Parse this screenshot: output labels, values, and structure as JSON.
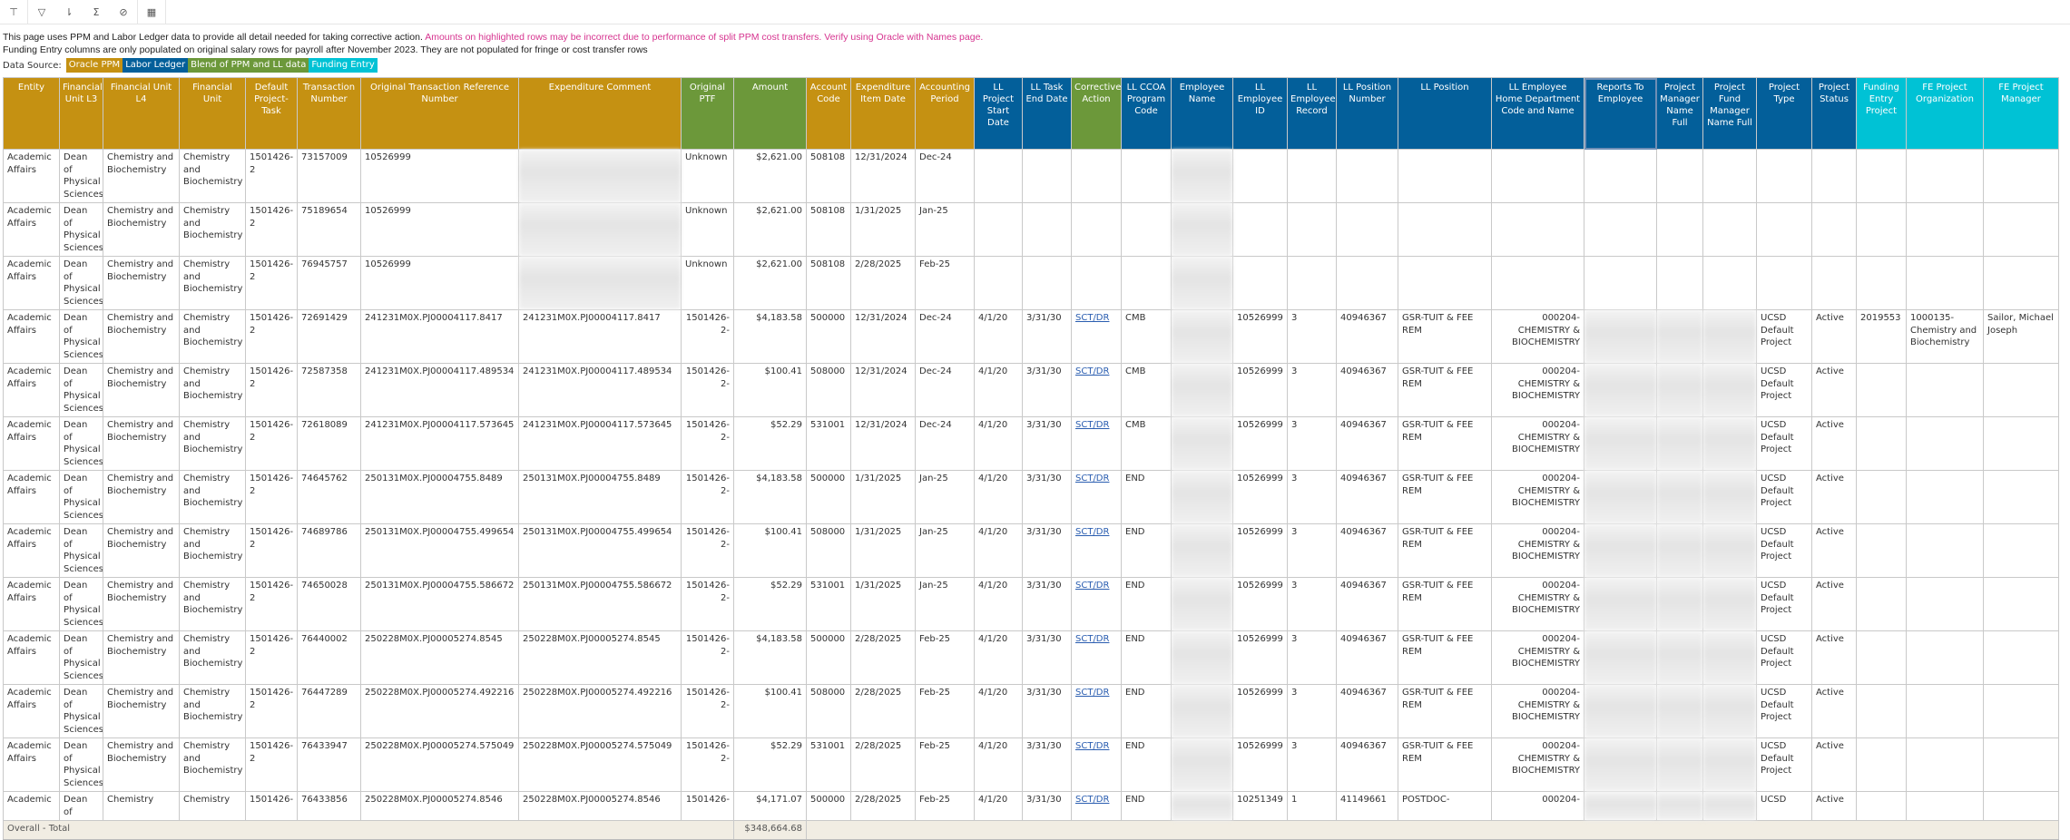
{
  "toolbar": {
    "buttons": [
      {
        "name": "drill-icon",
        "glyph": "⊤"
      },
      {
        "name": "filter-icon",
        "glyph": "▽"
      },
      {
        "name": "sort-icon",
        "glyph": "⇂"
      },
      {
        "name": "sum-icon",
        "glyph": "Σ"
      },
      {
        "name": "explore-icon",
        "glyph": "⊘"
      },
      {
        "name": "pivot-table-icon",
        "glyph": "▦"
      }
    ]
  },
  "notes": {
    "line1": "This page uses PPM and Labor Ledger data to provide all detail needed for taking corrective action.",
    "line1_warning": "Amounts on highlighted rows may be incorrect due to performance of split PPM cost transfers.  Verify using Oracle with Names page.",
    "line2": "Funding Entry columns are only populated on original salary rows for payroll after November 2023.  They are not populated for fringe or cost transfer rows"
  },
  "legend": {
    "label": "Data Source:",
    "chips": [
      {
        "label": "Oracle PPM",
        "color": "#c59112"
      },
      {
        "label": "Labor Ledger",
        "color": "#035f9a"
      },
      {
        "label": "Blend of PPM and LL data",
        "color": "#6c983a"
      },
      {
        "label": "Funding Entry",
        "color": "#00c2d5"
      }
    ]
  },
  "table": {
    "headers": [
      "Entity",
      "Financial Unit L3",
      "Financial Unit L4",
      "Financial Unit",
      "Default Project-Task",
      "Transaction Number",
      "Original Transaction Reference Number",
      "Expenditure Comment",
      "Original PTF",
      "Amount",
      "Account Code",
      "Expenditure Item Date",
      "Accounting Period",
      "LL Project Start Date",
      "LL Task End Date",
      "Corrective Action",
      "LL CCOA Program Code",
      "Employee Name",
      "LL Employee ID",
      "LL Employee Record",
      "LL Position Number",
      "LL Position",
      "LL Employee Home Department Code and Name",
      "Reports To Employee",
      "Project Manager Name Full",
      "Project Fund Manager Name Full",
      "Project Type",
      "Project Status",
      "Funding Entry Project",
      "FE Project Organization",
      "FE Project Manager"
    ],
    "rows": [
      [
        "Academic Affairs",
        "Dean of Physical Sciences",
        "Chemistry and Biochemistry",
        "Chemistry and Biochemistry",
        "1501426-2",
        "73157009",
        "10526999",
        "",
        "Unknown",
        "$2,621.00",
        "508108",
        "12/31/2024",
        "Dec-24",
        "",
        "",
        "",
        "",
        "",
        "",
        "",
        "",
        "",
        "",
        "",
        "",
        "",
        "",
        "",
        "",
        "",
        ""
      ],
      [
        "Academic Affairs",
        "Dean of Physical Sciences",
        "Chemistry and Biochemistry",
        "Chemistry and Biochemistry",
        "1501426-2",
        "75189654",
        "10526999",
        "",
        "Unknown",
        "$2,621.00",
        "508108",
        "1/31/2025",
        "Jan-25",
        "",
        "",
        "",
        "",
        "",
        "",
        "",
        "",
        "",
        "",
        "",
        "",
        "",
        "",
        "",
        "",
        "",
        ""
      ],
      [
        "Academic Affairs",
        "Dean of Physical Sciences",
        "Chemistry and Biochemistry",
        "Chemistry and Biochemistry",
        "1501426-2",
        "76945757",
        "10526999",
        "",
        "Unknown",
        "$2,621.00",
        "508108",
        "2/28/2025",
        "Feb-25",
        "",
        "",
        "",
        "",
        "",
        "",
        "",
        "",
        "",
        "",
        "",
        "",
        "",
        "",
        "",
        "",
        "",
        ""
      ],
      [
        "Academic Affairs",
        "Dean of Physical Sciences",
        "Chemistry and Biochemistry",
        "Chemistry and Biochemistry",
        "1501426-2",
        "72691429",
        "241231M0X.PJ00004117.8417",
        "241231M0X.PJ00004117.8417",
        "1501426-2-",
        "$4,183.58",
        "500000",
        "12/31/2024",
        "Dec-24",
        "4/1/20",
        "3/31/30",
        "SCT/DR",
        "CMB",
        "",
        "10526999",
        "3",
        "40946367",
        "GSR-TUIT & FEE REM",
        "000204-CHEMISTRY & BIOCHEMISTRY",
        "",
        "",
        "",
        "UCSD Default Project",
        "Active",
        "2019553",
        "1000135-Chemistry and Biochemistry",
        "Sailor, Michael Joseph"
      ],
      [
        "Academic Affairs",
        "Dean of Physical Sciences",
        "Chemistry and Biochemistry",
        "Chemistry and Biochemistry",
        "1501426-2",
        "72587358",
        "241231M0X.PJ00004117.489534",
        "241231M0X.PJ00004117.489534",
        "1501426-2-",
        "$100.41",
        "508000",
        "12/31/2024",
        "Dec-24",
        "4/1/20",
        "3/31/30",
        "SCT/DR",
        "CMB",
        "",
        "10526999",
        "3",
        "40946367",
        "GSR-TUIT & FEE REM",
        "000204-CHEMISTRY & BIOCHEMISTRY",
        "",
        "",
        "",
        "UCSD Default Project",
        "Active",
        "",
        "",
        ""
      ],
      [
        "Academic Affairs",
        "Dean of Physical Sciences",
        "Chemistry and Biochemistry",
        "Chemistry and Biochemistry",
        "1501426-2",
        "72618089",
        "241231M0X.PJ00004117.573645",
        "241231M0X.PJ00004117.573645",
        "1501426-2-",
        "$52.29",
        "531001",
        "12/31/2024",
        "Dec-24",
        "4/1/20",
        "3/31/30",
        "SCT/DR",
        "CMB",
        "",
        "10526999",
        "3",
        "40946367",
        "GSR-TUIT & FEE REM",
        "000204-CHEMISTRY & BIOCHEMISTRY",
        "",
        "",
        "",
        "UCSD Default Project",
        "Active",
        "",
        "",
        ""
      ],
      [
        "Academic Affairs",
        "Dean of Physical Sciences",
        "Chemistry and Biochemistry",
        "Chemistry and Biochemistry",
        "1501426-2",
        "74645762",
        "250131M0X.PJ00004755.8489",
        "250131M0X.PJ00004755.8489",
        "1501426-2-",
        "$4,183.58",
        "500000",
        "1/31/2025",
        "Jan-25",
        "4/1/20",
        "3/31/30",
        "SCT/DR",
        "END",
        "",
        "10526999",
        "3",
        "40946367",
        "GSR-TUIT & FEE REM",
        "000204-CHEMISTRY & BIOCHEMISTRY",
        "",
        "",
        "",
        "UCSD Default Project",
        "Active",
        "",
        "",
        ""
      ],
      [
        "Academic Affairs",
        "Dean of Physical Sciences",
        "Chemistry and Biochemistry",
        "Chemistry and Biochemistry",
        "1501426-2",
        "74689786",
        "250131M0X.PJ00004755.499654",
        "250131M0X.PJ00004755.499654",
        "1501426-2-",
        "$100.41",
        "508000",
        "1/31/2025",
        "Jan-25",
        "4/1/20",
        "3/31/30",
        "SCT/DR",
        "END",
        "",
        "10526999",
        "3",
        "40946367",
        "GSR-TUIT & FEE REM",
        "000204-CHEMISTRY & BIOCHEMISTRY",
        "",
        "",
        "",
        "UCSD Default Project",
        "Active",
        "",
        "",
        ""
      ],
      [
        "Academic Affairs",
        "Dean of Physical Sciences",
        "Chemistry and Biochemistry",
        "Chemistry and Biochemistry",
        "1501426-2",
        "74650028",
        "250131M0X.PJ00004755.586672",
        "250131M0X.PJ00004755.586672",
        "1501426-2-",
        "$52.29",
        "531001",
        "1/31/2025",
        "Jan-25",
        "4/1/20",
        "3/31/30",
        "SCT/DR",
        "END",
        "",
        "10526999",
        "3",
        "40946367",
        "GSR-TUIT & FEE REM",
        "000204-CHEMISTRY & BIOCHEMISTRY",
        "",
        "",
        "",
        "UCSD Default Project",
        "Active",
        "",
        "",
        ""
      ],
      [
        "Academic Affairs",
        "Dean of Physical Sciences",
        "Chemistry and Biochemistry",
        "Chemistry and Biochemistry",
        "1501426-2",
        "76440002",
        "250228M0X.PJ00005274.8545",
        "250228M0X.PJ00005274.8545",
        "1501426-2-",
        "$4,183.58",
        "500000",
        "2/28/2025",
        "Feb-25",
        "4/1/20",
        "3/31/30",
        "SCT/DR",
        "END",
        "",
        "10526999",
        "3",
        "40946367",
        "GSR-TUIT & FEE REM",
        "000204-CHEMISTRY & BIOCHEMISTRY",
        "",
        "",
        "",
        "UCSD Default Project",
        "Active",
        "",
        "",
        ""
      ],
      [
        "Academic Affairs",
        "Dean of Physical Sciences",
        "Chemistry and Biochemistry",
        "Chemistry and Biochemistry",
        "1501426-2",
        "76447289",
        "250228M0X.PJ00005274.492216",
        "250228M0X.PJ00005274.492216",
        "1501426-2-",
        "$100.41",
        "508000",
        "2/28/2025",
        "Feb-25",
        "4/1/20",
        "3/31/30",
        "SCT/DR",
        "END",
        "",
        "10526999",
        "3",
        "40946367",
        "GSR-TUIT & FEE REM",
        "000204-CHEMISTRY & BIOCHEMISTRY",
        "",
        "",
        "",
        "UCSD Default Project",
        "Active",
        "",
        "",
        ""
      ],
      [
        "Academic Affairs",
        "Dean of Physical Sciences",
        "Chemistry and Biochemistry",
        "Chemistry and Biochemistry",
        "1501426-2",
        "76433947",
        "250228M0X.PJ00005274.575049",
        "250228M0X.PJ00005274.575049",
        "1501426-2-",
        "$52.29",
        "531001",
        "2/28/2025",
        "Feb-25",
        "4/1/20",
        "3/31/30",
        "SCT/DR",
        "END",
        "",
        "10526999",
        "3",
        "40946367",
        "GSR-TUIT & FEE REM",
        "000204-CHEMISTRY & BIOCHEMISTRY",
        "",
        "",
        "",
        "UCSD Default Project",
        "Active",
        "",
        "",
        ""
      ],
      [
        "Academic",
        "Dean of",
        "Chemistry",
        "Chemistry",
        "1501426-",
        "76433856",
        "250228M0X.PJ00005274.8546",
        "250228M0X.PJ00005274.8546",
        "1501426-",
        "$4,171.07",
        "500000",
        "2/28/2025",
        "Feb-25",
        "4/1/20",
        "3/31/30",
        "SCT/DR",
        "END",
        "",
        "10251349",
        "1",
        "41149661",
        "POSTDOC-",
        "000204-",
        "",
        "",
        "",
        "UCSD",
        "Active",
        "",
        "",
        ""
      ]
    ],
    "total": {
      "label": "Overall - Total",
      "amount": "$348,664.68"
    }
  }
}
